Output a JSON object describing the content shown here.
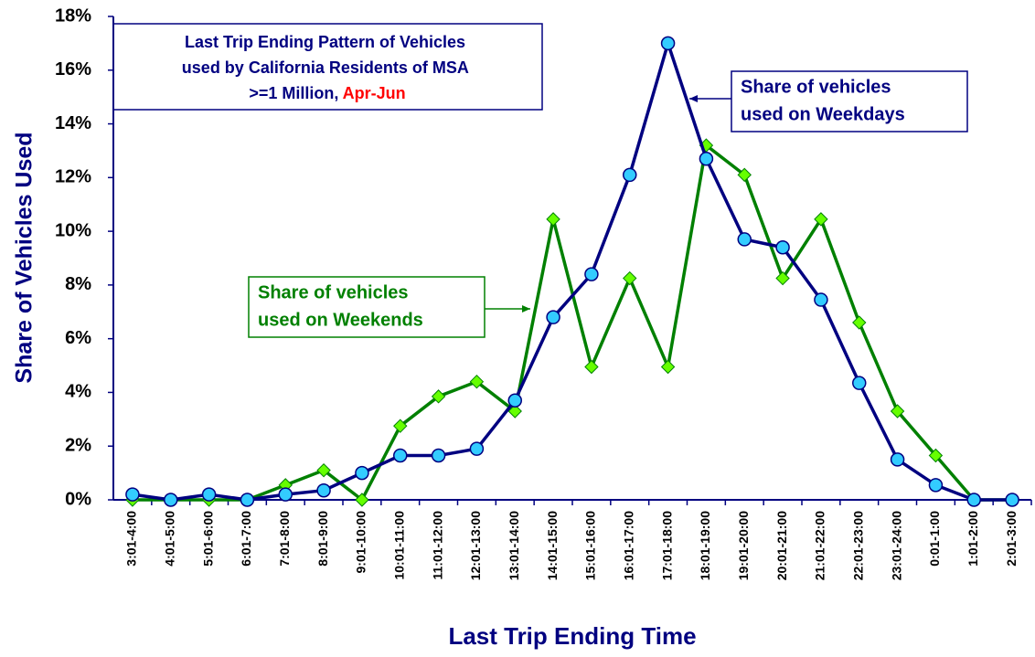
{
  "chart_data": {
    "type": "line",
    "title_lines": [
      "Last Trip Ending Pattern of Vehicles",
      "used by California Residents of MSA",
      ">=1 Million, "
    ],
    "title_highlight": "Apr-Jun",
    "x_label": "Last Trip Ending Time",
    "y_label": "Share of Vehicles Used",
    "categories": [
      "3:01-4:00",
      "4:01-5:00",
      "5:01-6:00",
      "6:01-7:00",
      "7:01-8:00",
      "8:01-9:00",
      "9:01-10:00",
      "10:01-11:00",
      "11:01-12:00",
      "12:01-13:00",
      "13:01-14:00",
      "14:01-15:00",
      "15:01-16:00",
      "16:01-17:00",
      "17:01-18:00",
      "18:01-19:00",
      "19:01-20:00",
      "20:01-21:00",
      "21:01-22:00",
      "22:01-23:00",
      "23:01-24:00",
      "0:01-1:00",
      "1:01-2:00",
      "2:01-3:00"
    ],
    "series": [
      {
        "name": "Share of vehicles used on Weekends",
        "color": "#008000",
        "marker_color": "#66ff00",
        "marker": "diamond",
        "values": [
          0,
          0,
          0,
          0,
          0.55,
          1.1,
          0,
          2.75,
          3.85,
          4.4,
          3.3,
          10.45,
          4.95,
          8.25,
          4.95,
          13.2,
          12.1,
          8.25,
          10.45,
          6.6,
          3.3,
          1.65,
          0,
          0
        ]
      },
      {
        "name": "Share of vehicles used on Weekdays",
        "color": "#000080",
        "marker_color": "#33ccff",
        "marker": "circle",
        "values": [
          0.2,
          0,
          0.2,
          0,
          0.2,
          0.35,
          1.0,
          1.65,
          1.65,
          1.9,
          3.7,
          6.8,
          8.4,
          12.1,
          17.0,
          12.7,
          9.7,
          9.4,
          7.45,
          4.35,
          1.5,
          0.55,
          0,
          0
        ]
      }
    ],
    "annotations": [
      [
        "Share of vehicles",
        "used on Weekends"
      ],
      [
        "Share of vehicles",
        "used on Weekdays"
      ]
    ],
    "ylim": [
      0,
      18
    ],
    "yticks": [
      {
        "value": 0,
        "label": "0%"
      },
      {
        "value": 2,
        "label": "2%"
      },
      {
        "value": 4,
        "label": "4%"
      },
      {
        "value": 6,
        "label": "6%"
      },
      {
        "value": 8,
        "label": "8%"
      },
      {
        "value": 10,
        "label": "10%"
      },
      {
        "value": 12,
        "label": "12%"
      },
      {
        "value": 14,
        "label": "14%"
      },
      {
        "value": 16,
        "label": "16%"
      },
      {
        "value": 18,
        "label": "18%"
      }
    ]
  }
}
